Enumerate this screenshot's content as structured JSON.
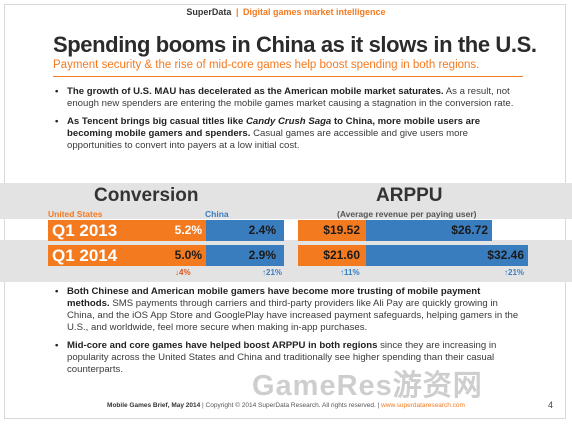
{
  "header": {
    "brand": "SuperData",
    "separator": "|",
    "tagline": "Digital games market intelligence"
  },
  "title": "Spending booms in China as it slows in the U.S.",
  "subtitle": "Payment security & the rise of mid-core games help boost spending in both regions.",
  "bullets_top": [
    {
      "bold": "The growth of U.S. MAU has decelerated as the American mobile market saturates.",
      "italic": "",
      "bold_after": "",
      "text": " As a result, not enough new spenders are entering the mobile games market causing a stagnation in the conversion rate."
    },
    {
      "bold": "As Tencent brings big casual titles like ",
      "italic": "Candy Crush Saga",
      "bold_after": " to China, more mobile users are becoming mobile gamers and spenders.",
      "text": " Casual games are accessible and give users more opportunities to convert into payers at a low initial cost."
    }
  ],
  "conversion": {
    "title": "Conversion",
    "us_label": "United States",
    "china_label": "China",
    "rows": [
      {
        "period": "Q1 2013",
        "us": "5.2%",
        "china": "2.4%"
      },
      {
        "period": "Q1 2014",
        "us": "5.0%",
        "china": "2.9%"
      }
    ],
    "us_change": "↓4%",
    "china_change": "↑21%"
  },
  "arppu": {
    "title": "ARPPU",
    "subtitle": "(Average revenue per paying user)",
    "rows": [
      {
        "us": "$19.52",
        "china": "$26.72"
      },
      {
        "us": "$21.60",
        "china": "$32.46"
      }
    ],
    "us_change": "↑11%",
    "china_change": "↑21%"
  },
  "bullets_bottom": [
    {
      "bold": "Both Chinese and American mobile gamers have become more trusting of mobile payment methods.",
      "text": " SMS payments through carriers and third-party providers like Ali Pay are quickly growing in China, and the iOS App Store and GooglePlay have increased payment safeguards, helping gamers in the U.S., and worldwide, feel more secure when making in-app purchases."
    },
    {
      "bold": "Mid-core and core games have helped boost ARPPU in both regions",
      "text": " since they are increasing in popularity across the United States and China and traditionally see higher spending than their casual counterparts."
    }
  ],
  "footer": {
    "doc": "Mobile Games Brief, May 2014",
    "copyright": " | Copyright © 2014 SuperData Research. All rights reserved. | ",
    "url": "www.superdataresearch.com"
  },
  "page_number": "4",
  "watermark": "GameRes游资网",
  "colors": {
    "accent": "#f47a20",
    "china": "#3a7dbf",
    "band": "#e3e3e3"
  }
}
